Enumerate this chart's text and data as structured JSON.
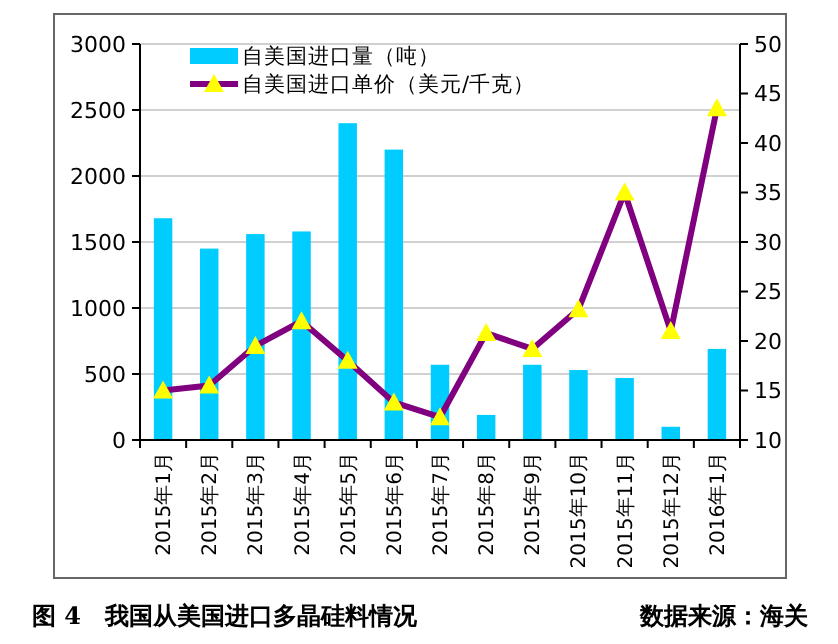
{
  "chart_data": {
    "type": "bar",
    "title": "图 4　我国从美国进口多晶硅料情况",
    "annotations": [
      "数据来源：海关"
    ],
    "categories": [
      "2015年1月",
      "2015年2月",
      "2015年3月",
      "2015年4月",
      "2015年5月",
      "2015年6月",
      "2015年7月",
      "2015年8月",
      "2015年9月",
      "2015年10月",
      "2015年11月",
      "2015年12月",
      "2016年1月"
    ],
    "series": [
      {
        "name": "自美国进口量（吨）",
        "color": "#00ccff",
        "values": [
          1680,
          1450,
          1560,
          1580,
          2400,
          2200,
          570,
          190,
          570,
          530,
          470,
          100,
          690
        ]
      },
      {
        "name": "自美国进口单价（美元/千克）",
        "type": "line",
        "axis": "y2",
        "color": "#800080",
        "marker": "triangle",
        "values": [
          15,
          15.5,
          19.5,
          22,
          18,
          13.8,
          12.3,
          20.8,
          19.2,
          23.2,
          35,
          21,
          43.5
        ]
      }
    ],
    "ylim": [
      0,
      3000
    ],
    "yticks": [
      0,
      500,
      1000,
      1500,
      2000,
      2500,
      3000
    ],
    "y2lim": [
      10,
      50
    ],
    "y2ticks": [
      10,
      15,
      20,
      25,
      30,
      35,
      40,
      45,
      50
    ],
    "grid": "y",
    "legend": "top left"
  }
}
